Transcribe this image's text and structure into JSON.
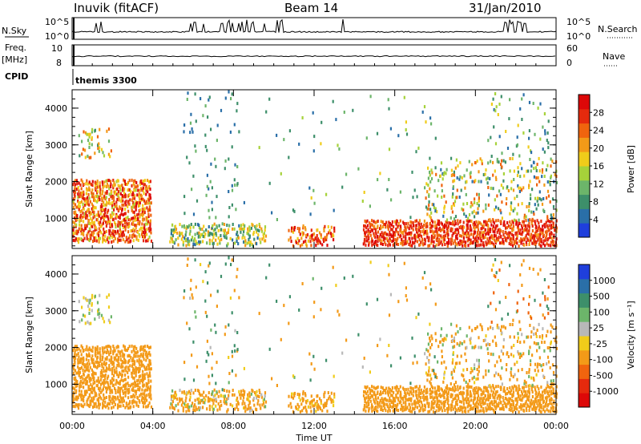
{
  "header": {
    "station": "Inuvik (fitACF)",
    "beam": "Beam 14",
    "date": "31/Jan/2010"
  },
  "top_panels": {
    "nsky_label": "N.Sky",
    "nsearch_label": "N.Search",
    "nsky_ticks": [
      "10^5",
      "10^0"
    ],
    "nsearch_ticks": [
      "10^5",
      "10^0"
    ],
    "freq_label_1": "Freq.",
    "freq_label_2": "[MHz]",
    "freq_ticks": [
      "10",
      "8"
    ],
    "nave_label": "Nave",
    "nave_ticks": [
      "60",
      "0"
    ],
    "cpid_label": "CPID",
    "cpid_value": "themis 3300"
  },
  "axes": {
    "x_ticks": [
      "00:00",
      "04:00",
      "08:00",
      "12:00",
      "16:00",
      "20:00",
      "00:00"
    ],
    "x_label": "Time UT",
    "y_ticks": [
      "1000",
      "2000",
      "3000",
      "4000"
    ],
    "y_label": "Slant Range [km]"
  },
  "colorbars": {
    "power_label": "Power [dB]",
    "power_ticks": [
      "4",
      "8",
      "12",
      "16",
      "20",
      "24",
      "28"
    ],
    "power_colors": [
      "#1f3fdc",
      "#2a6fa8",
      "#3d8f6a",
      "#6cb56a",
      "#a6d23a",
      "#f0cc1a",
      "#f39a18",
      "#f0640e",
      "#e52a0d",
      "#dd0808"
    ],
    "velocity_label": "Velocity [m s⁻¹]",
    "velocity_ticks": [
      "1000",
      "500",
      "100",
      "25",
      "-25",
      "-100",
      "-500",
      "-1000"
    ],
    "velocity_colors": [
      "#1f3fdc",
      "#2a6fa8",
      "#3d8f6a",
      "#6cb56a",
      "#b8b8b8",
      "#f0cc1a",
      "#f39a18",
      "#f0640e",
      "#e52a0d",
      "#dd0808"
    ]
  },
  "chart_data": {
    "type": "heatmap",
    "x_range_hours": [
      0,
      24
    ],
    "y_range_km": [
      180,
      4500
    ],
    "power_range_db": [
      0,
      30
    ],
    "velocity_range_ms": [
      -1000,
      1000
    ],
    "scatter_regions": [
      {
        "name": "early-echo",
        "t": [
          0.0,
          3.9
        ],
        "r": [
          300,
          2000
        ],
        "density": 0.85,
        "power": [
          14,
          30
        ],
        "vel": [
          -500,
          -100
        ]
      },
      {
        "name": "early-high",
        "t": [
          0.3,
          1.9
        ],
        "r": [
          2600,
          3400
        ],
        "density": 0.25,
        "power": [
          8,
          24
        ],
        "vel": [
          -100,
          100
        ]
      },
      {
        "name": "near-range-0630",
        "t": [
          4.8,
          9.6
        ],
        "r": [
          200,
          800
        ],
        "density": 0.55,
        "power": [
          4,
          20
        ],
        "vel": [
          -500,
          100
        ]
      },
      {
        "name": "sparse-0600",
        "t": [
          5.5,
          8.5
        ],
        "r": [
          800,
          4400
        ],
        "density": 0.05,
        "power": [
          4,
          12
        ],
        "vel": [
          -500,
          500
        ]
      },
      {
        "name": "near-range-1130",
        "t": [
          10.7,
          13.0
        ],
        "r": [
          200,
          750
        ],
        "density": 0.6,
        "power": [
          16,
          30
        ],
        "vel": [
          -500,
          -25
        ]
      },
      {
        "name": "main-band",
        "t": [
          14.4,
          24.0
        ],
        "r": [
          200,
          900
        ],
        "density": 0.9,
        "power": [
          20,
          30
        ],
        "vel": [
          -500,
          -100
        ]
      },
      {
        "name": "late-mid",
        "t": [
          17.5,
          24.0
        ],
        "r": [
          900,
          2600
        ],
        "density": 0.22,
        "power": [
          4,
          24
        ],
        "vel": [
          -500,
          100
        ]
      },
      {
        "name": "late-high",
        "t": [
          20.5,
          23.6
        ],
        "r": [
          2600,
          4400
        ],
        "density": 0.08,
        "power": [
          4,
          16
        ],
        "vel": [
          -1000,
          500
        ]
      },
      {
        "name": "scattered-mid",
        "t": [
          9.0,
          18.0
        ],
        "r": [
          900,
          4300
        ],
        "density": 0.02,
        "power": [
          4,
          16
        ],
        "vel": [
          -500,
          500
        ]
      }
    ]
  }
}
